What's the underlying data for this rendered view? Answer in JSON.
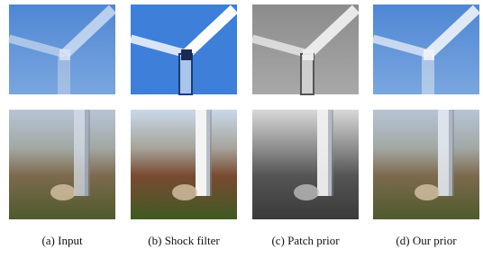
{
  "figure": {
    "captions": [
      "(a)  Input",
      "(b)  Shock filter",
      "(c)  Patch prior",
      "(d)  Our prior"
    ]
  }
}
